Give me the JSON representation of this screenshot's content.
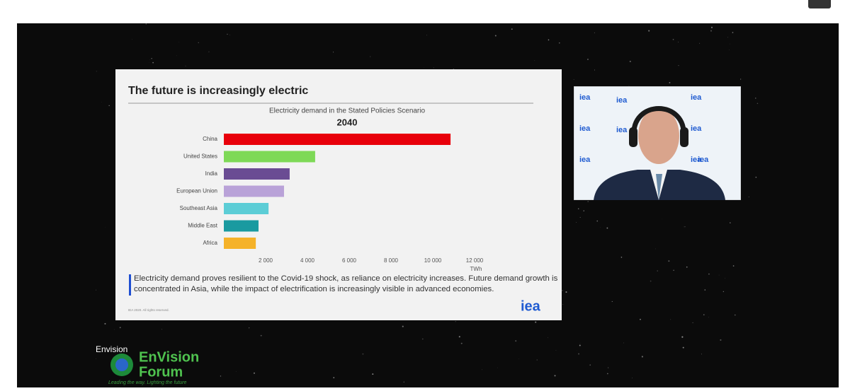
{
  "slide": {
    "title": "The future is increasingly electric",
    "caption": "Electricity demand proves resilient to the Covid-19 shock, as reliance on electricity increases. Future demand growth is concentrated in Asia, while the impact of electrification is increasingly visible in advanced economies.",
    "footer": "IEA 2020. All rights reserved.",
    "logo": "iea"
  },
  "chart_data": {
    "type": "bar",
    "orientation": "horizontal",
    "title": "Electricity demand in the Stated Policies Scenario",
    "subtitle": "2040",
    "categories": [
      "China",
      "United States",
      "India",
      "European Union",
      "Southeast Asia",
      "Middle East",
      "Africa"
    ],
    "values": [
      10850,
      4370,
      3150,
      2880,
      2140,
      1660,
      1530
    ],
    "colors": [
      "#e8000b",
      "#7ed957",
      "#6a4c93",
      "#b9a2d8",
      "#5ccdd6",
      "#1a9aa0",
      "#f5b229"
    ],
    "xlim": [
      0,
      12000
    ],
    "xticks": [
      {
        "value": 2000,
        "label": "2 000"
      },
      {
        "value": 4000,
        "label": "4 000"
      },
      {
        "value": 6000,
        "label": "6 000"
      },
      {
        "value": 8000,
        "label": "8 000"
      },
      {
        "value": 10000,
        "label": "10 000"
      },
      {
        "value": 12000,
        "label": "12 000"
      }
    ],
    "x_label": "TWh",
    "grid": false
  },
  "webcam": {
    "logo": "iea"
  },
  "overlay": {
    "participant": "Envision",
    "brand_line1": "EnVision",
    "brand_line2": "Forum",
    "tagline": "Leading the way. Lighting the future"
  }
}
